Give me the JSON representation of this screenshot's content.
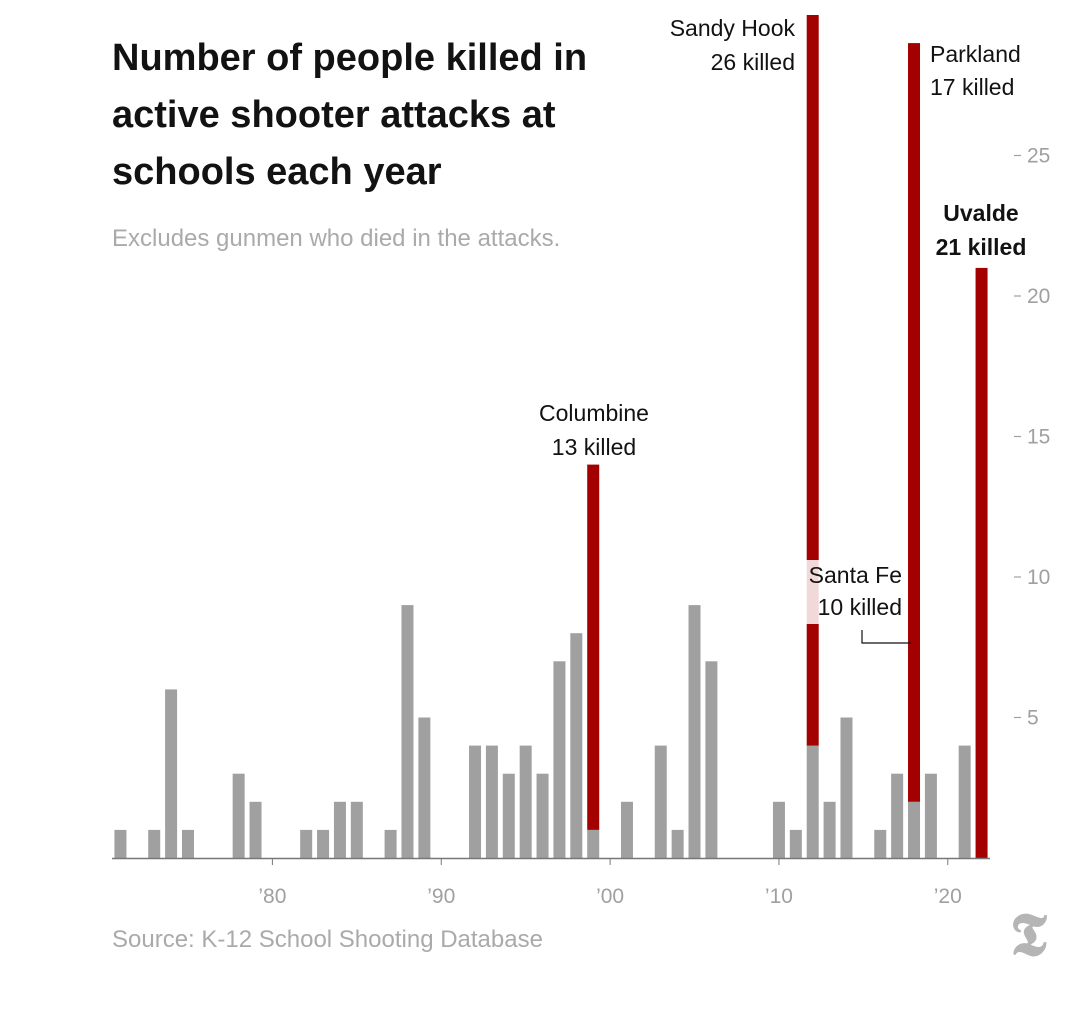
{
  "header": {
    "title": "Number of people killed in active shooter attacks at schools each year",
    "subtitle": "Excludes gunmen who died in the attacks."
  },
  "footer": {
    "source": "Source: K-12 School Shooting Database",
    "logo_glyph": "𝕿",
    "logo_icon": "nyt-logo-icon"
  },
  "colors": {
    "base_bar": "#a0a0a0",
    "highlight_bar": "#a30000",
    "axis": "#777777",
    "tick_label": "#a0a0a0",
    "annotation_text": "#121212"
  },
  "chart_data": {
    "type": "bar",
    "stacked": true,
    "x": [
      1971,
      1972,
      1973,
      1974,
      1975,
      1976,
      1977,
      1978,
      1979,
      1980,
      1981,
      1982,
      1983,
      1984,
      1985,
      1986,
      1987,
      1988,
      1989,
      1990,
      1991,
      1992,
      1993,
      1994,
      1995,
      1996,
      1997,
      1998,
      1999,
      2000,
      2001,
      2002,
      2003,
      2004,
      2005,
      2006,
      2007,
      2008,
      2009,
      2010,
      2011,
      2012,
      2013,
      2014,
      2015,
      2016,
      2017,
      2018,
      2019,
      2020,
      2021,
      2022
    ],
    "series": [
      {
        "values": [
          1,
          0,
          1,
          6,
          1,
          0,
          0,
          3,
          2,
          0,
          0,
          1,
          1,
          2,
          2,
          0,
          1,
          9,
          5,
          0,
          0,
          4,
          4,
          3,
          4,
          3,
          7,
          8,
          1,
          0,
          2,
          0,
          4,
          1,
          9,
          7,
          0,
          0,
          0,
          2,
          1,
          4,
          2,
          5,
          0,
          1,
          3,
          2,
          3,
          0,
          4,
          0
        ]
      },
      {
        "values": [
          0,
          0,
          0,
          0,
          0,
          0,
          0,
          0,
          0,
          0,
          0,
          0,
          0,
          0,
          0,
          0,
          0,
          0,
          0,
          0,
          0,
          0,
          0,
          0,
          0,
          0,
          0,
          0,
          13,
          0,
          0,
          0,
          0,
          0,
          0,
          0,
          0,
          0,
          0,
          0,
          0,
          26,
          0,
          0,
          0,
          0,
          0,
          27,
          0,
          0,
          0,
          21
        ]
      }
    ],
    "xlim": [
      1970.5,
      2022.5
    ],
    "ylim": [
      0,
      30
    ],
    "x_ticks": [
      {
        "value": 1980,
        "label": "’80"
      },
      {
        "value": 1990,
        "label": "’90"
      },
      {
        "value": 2000,
        "label": "’00"
      },
      {
        "value": 2010,
        "label": "’10"
      },
      {
        "value": 2020,
        "label": "’20"
      }
    ],
    "y_ticks": [
      {
        "value": 5,
        "label": "5"
      },
      {
        "value": 10,
        "label": "10"
      },
      {
        "value": 15,
        "label": "15"
      },
      {
        "value": 20,
        "label": "20"
      },
      {
        "value": 25,
        "label": "25"
      }
    ],
    "y_axis_side": "right",
    "grid": false,
    "legend": "none",
    "annotations": [
      {
        "name": "columbine",
        "year": 1999,
        "line1": "Columbine",
        "line2": "13 killed",
        "bold": false
      },
      {
        "name": "sandy-hook",
        "year": 2012,
        "line1": "Sandy Hook",
        "line2": "26 killed",
        "bold": false
      },
      {
        "name": "parkland",
        "year": 2018,
        "line1": "Parkland",
        "line2": "17 killed",
        "bold": false
      },
      {
        "name": "santa-fe",
        "year": 2018,
        "line1": "Santa Fe",
        "line2": "10 killed",
        "bold": false
      },
      {
        "name": "uvalde",
        "year": 2022,
        "line1": "Uvalde",
        "line2": "21 killed",
        "bold": true
      }
    ]
  }
}
